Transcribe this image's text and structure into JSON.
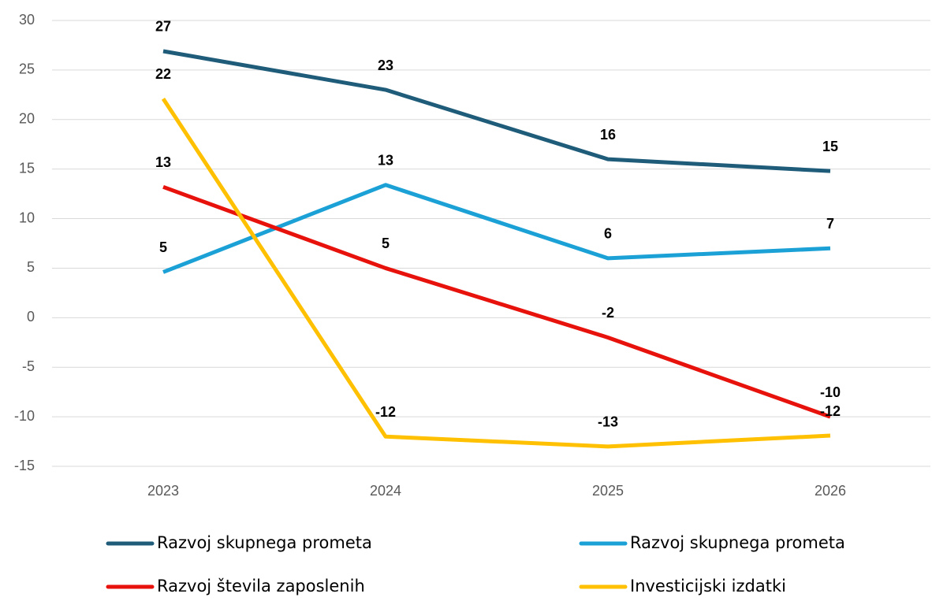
{
  "chart_data": {
    "type": "line",
    "categories": [
      "2023",
      "2024",
      "2025",
      "2026"
    ],
    "series": [
      {
        "name": "Razvoj skupnega prometa",
        "color": "#1f5c7a",
        "values": [
          26.9,
          23,
          16,
          14.8
        ],
        "value_labels": [
          "27",
          "23",
          "16",
          "15"
        ]
      },
      {
        "name": "Razvoj skupnega prometa",
        "color": "#1ba1d6",
        "values": [
          4.6,
          13.4,
          6,
          7
        ],
        "value_labels": [
          "5",
          "13",
          "6",
          "7"
        ]
      },
      {
        "name": "Razvoj števila zaposlenih",
        "color": "#e8120c",
        "values": [
          13.2,
          5,
          -2,
          -10
        ],
        "value_labels": [
          "13",
          "5",
          "-2",
          "-10"
        ]
      },
      {
        "name": "Investicijski izdatki",
        "color": "#ffc000",
        "values": [
          22.1,
          -12,
          -13,
          -11.9
        ],
        "value_labels": [
          "22",
          "-12",
          "-13",
          "-12"
        ]
      }
    ],
    "ylim": [
      -15,
      30
    ],
    "yticks": [
      -15,
      -10,
      -5,
      0,
      5,
      10,
      15,
      20,
      25,
      30
    ],
    "grid": true
  }
}
